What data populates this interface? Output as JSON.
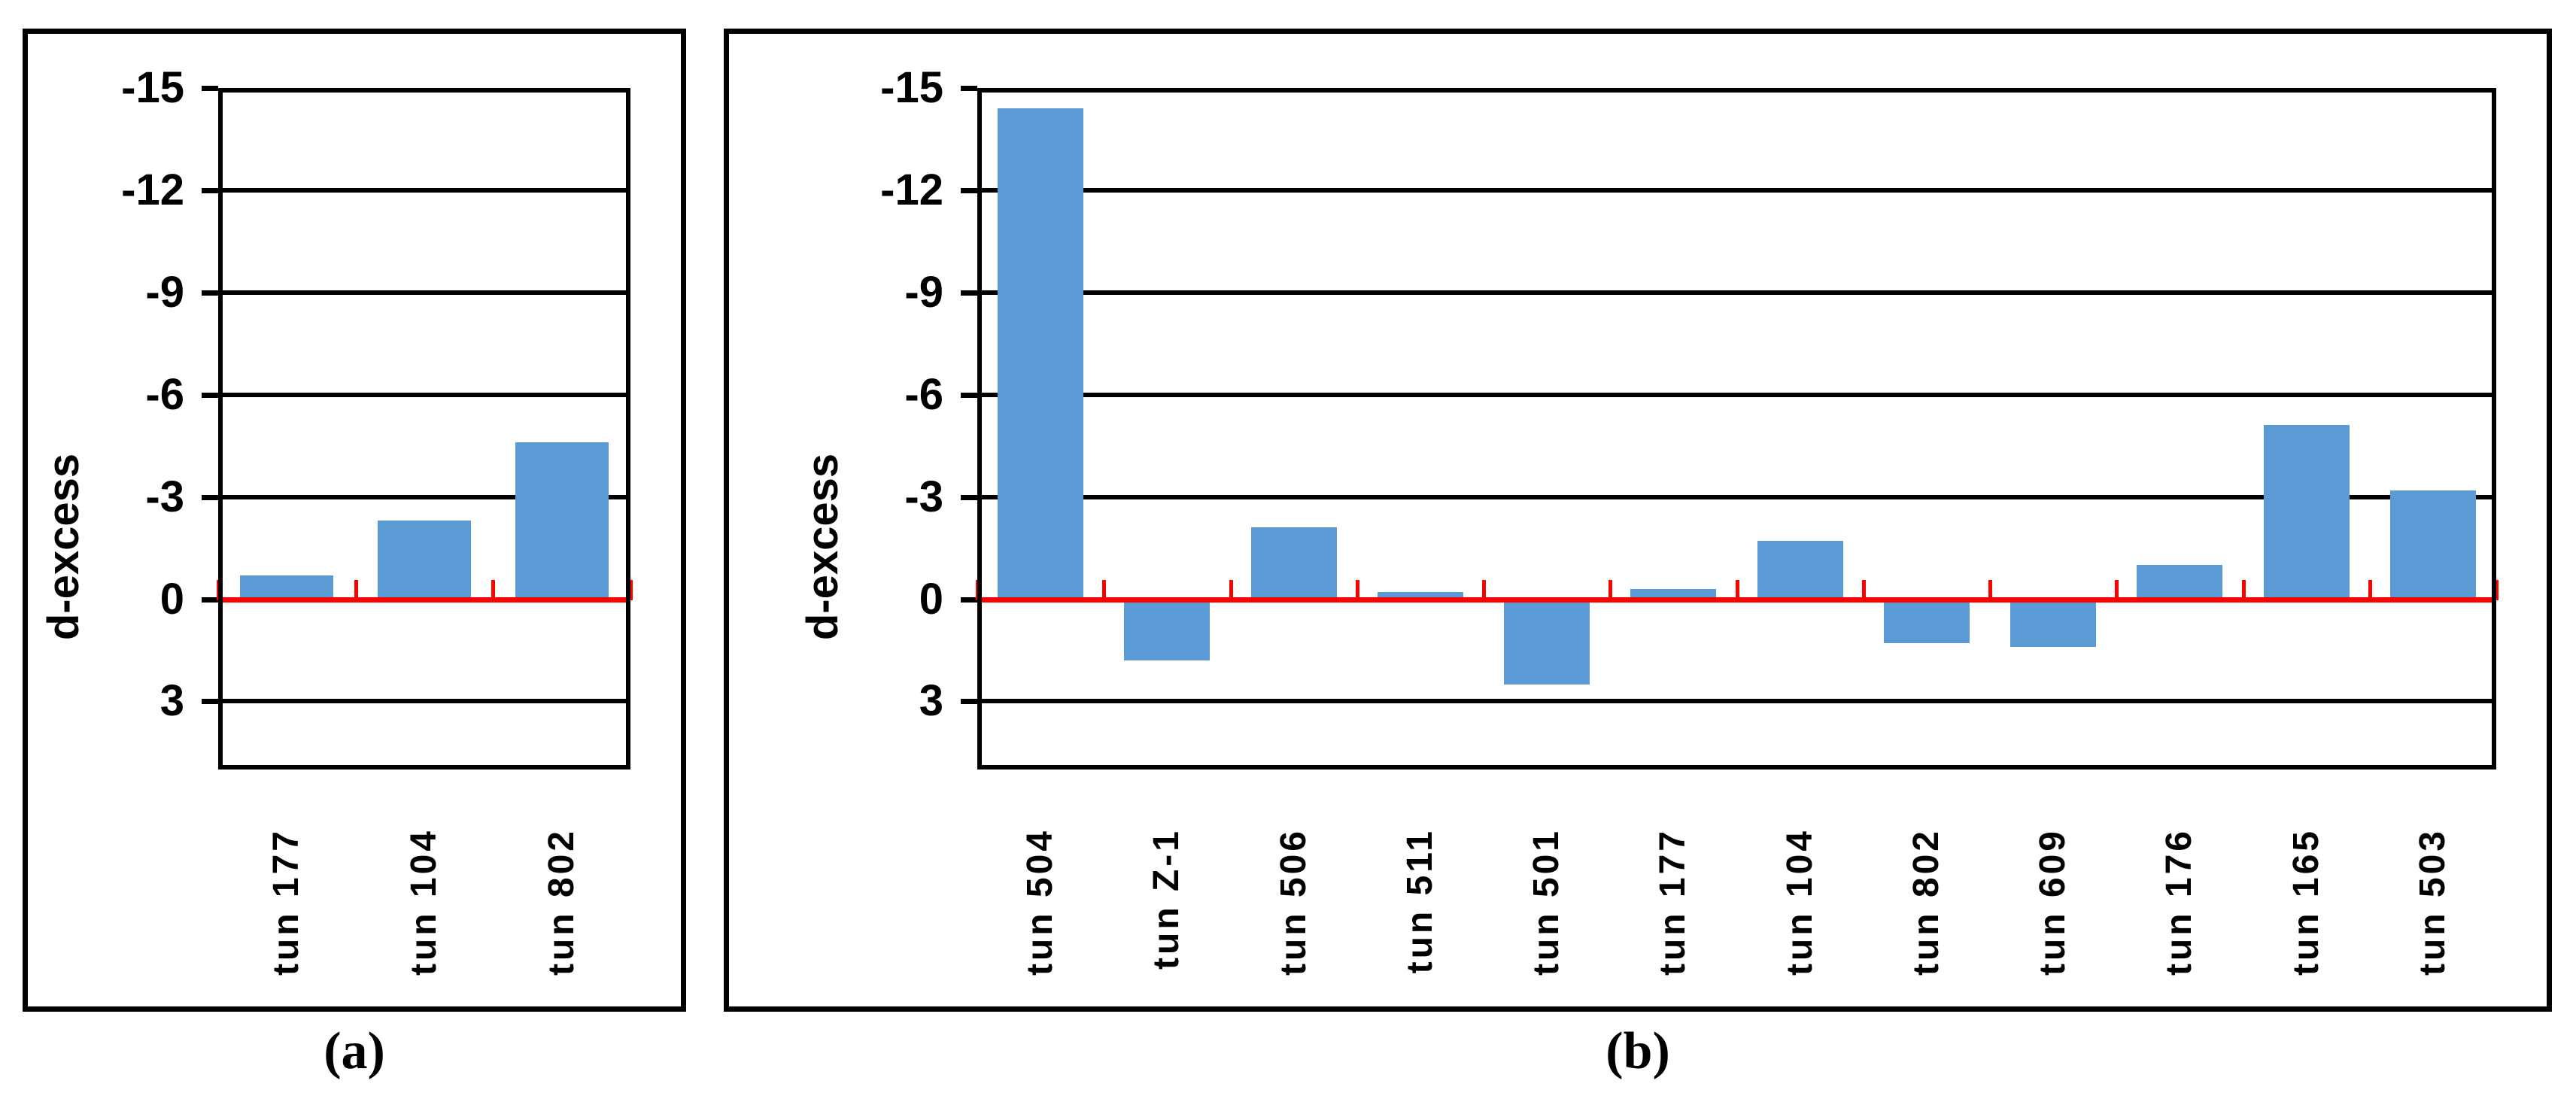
{
  "figure": {
    "background": "#ffffff",
    "captions": {
      "a": "(a)",
      "b": "(b)"
    }
  },
  "colors": {
    "bar": "#5B9BD5",
    "zero_line": "#FF0000",
    "axis": "#000000"
  },
  "chart_data": [
    {
      "id": "a",
      "type": "bar",
      "title": "",
      "xlabel": "",
      "ylabel": "d-excess",
      "y_axis_inverted": true,
      "ylim": [
        -15,
        5
      ],
      "yticks": [
        -15,
        -12,
        -9,
        -6,
        -3,
        0,
        3
      ],
      "grid": true,
      "legend": "none",
      "zero_line_color": "#FF0000",
      "categories": [
        "tun 177",
        "tun 104",
        "tun 802"
      ],
      "values": [
        -0.7,
        -2.3,
        -4.6
      ]
    },
    {
      "id": "b",
      "type": "bar",
      "title": "",
      "xlabel": "",
      "ylabel": "d-excess",
      "y_axis_inverted": true,
      "ylim": [
        -15,
        5
      ],
      "yticks": [
        -15,
        -12,
        -9,
        -6,
        -3,
        0,
        3
      ],
      "grid": true,
      "legend": "none",
      "zero_line_color": "#FF0000",
      "categories": [
        "tun 504",
        "tun Z-1",
        "tun 506",
        "tun 511",
        "tun 501",
        "tun 177",
        "tun 104",
        "tun 802",
        "tun 609",
        "tun 176",
        "tun 165",
        "tun 503"
      ],
      "values": [
        -14.4,
        1.8,
        -2.1,
        -0.2,
        2.5,
        -0.3,
        -1.7,
        1.3,
        1.4,
        -1.0,
        -5.1,
        -3.2
      ]
    }
  ]
}
